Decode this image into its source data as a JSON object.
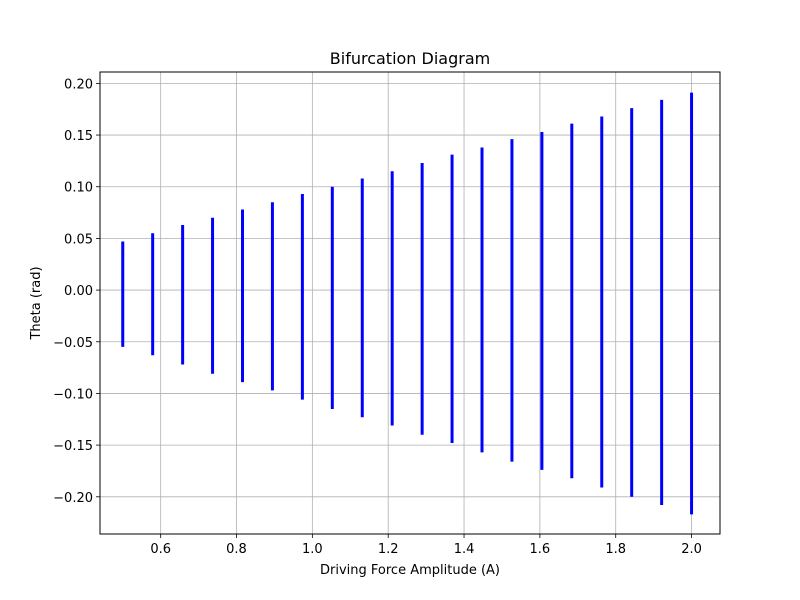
{
  "chart_data": {
    "type": "scatter",
    "title": "Bifurcation Diagram",
    "xlabel": "Driving Force Amplitude (A)",
    "ylabel": "Theta (rad)",
    "xlim": [
      0.44,
      2.075
    ],
    "ylim": [
      -0.236,
      0.211
    ],
    "grid": true,
    "color": "#0000ff",
    "xticks": [
      0.6,
      0.8,
      1.0,
      1.2,
      1.4,
      1.6,
      1.8,
      2.0
    ],
    "xtick_labels": [
      "0.6",
      "0.8",
      "1.0",
      "1.2",
      "1.4",
      "1.6",
      "1.8",
      "2.0"
    ],
    "yticks": [
      -0.2,
      -0.15,
      -0.1,
      -0.05,
      0.0,
      0.05,
      0.1,
      0.15,
      0.2
    ],
    "ytick_labels": [
      "−0.20",
      "−0.15",
      "−0.10",
      "−0.05",
      "0.00",
      "0.05",
      "0.10",
      "0.15",
      "0.20"
    ],
    "x": [
      0.5,
      0.5789,
      0.6579,
      0.7368,
      0.8158,
      0.8947,
      0.9737,
      1.0526,
      1.1316,
      1.2105,
      1.2895,
      1.3684,
      1.4474,
      1.5263,
      1.6053,
      1.6842,
      1.7632,
      1.8421,
      1.9211,
      2.0
    ],
    "y_min": [
      -0.055,
      -0.063,
      -0.072,
      -0.081,
      -0.089,
      -0.097,
      -0.106,
      -0.115,
      -0.123,
      -0.131,
      -0.14,
      -0.148,
      -0.157,
      -0.166,
      -0.174,
      -0.182,
      -0.191,
      -0.2,
      -0.208,
      -0.217
    ],
    "y_max": [
      0.047,
      0.055,
      0.063,
      0.07,
      0.078,
      0.085,
      0.093,
      0.1,
      0.108,
      0.115,
      0.123,
      0.131,
      0.138,
      0.146,
      0.153,
      0.161,
      0.168,
      0.176,
      0.184,
      0.191
    ]
  }
}
